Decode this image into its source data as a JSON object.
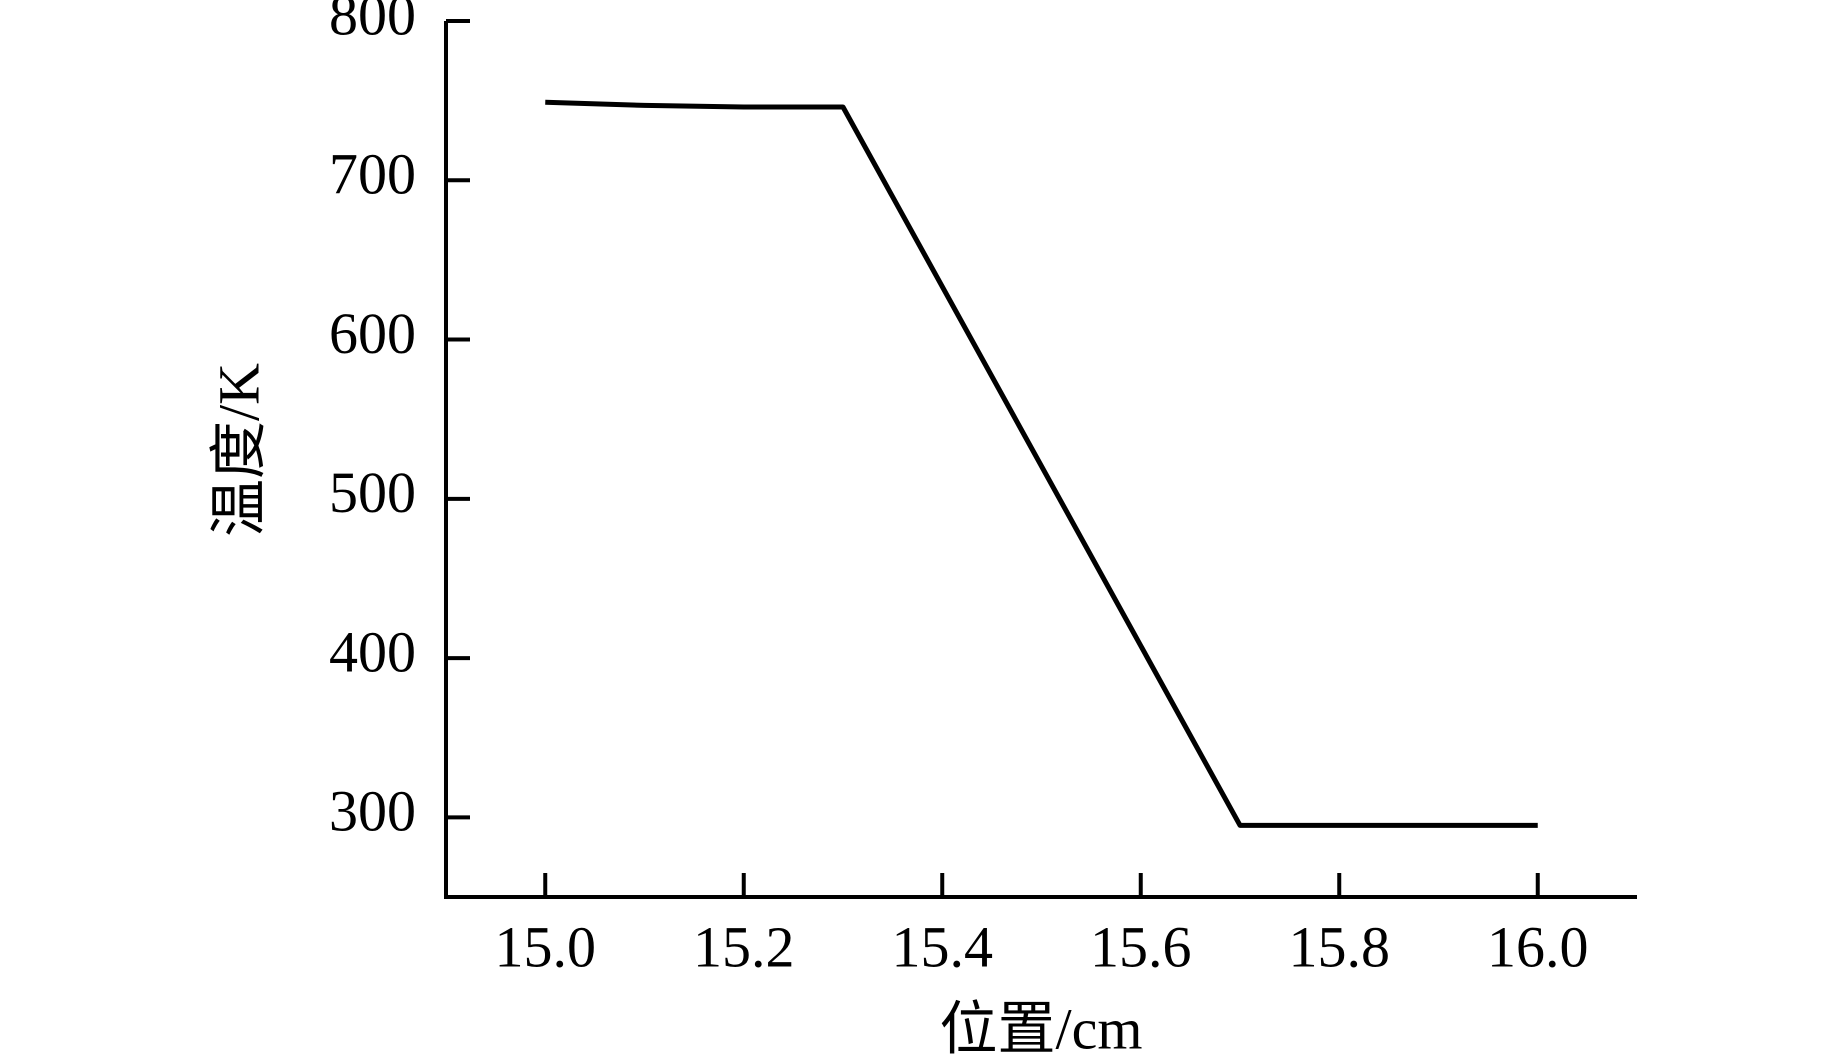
{
  "chart_data": {
    "type": "line",
    "x_label": "位置/cm",
    "y_label": "温度/K",
    "x": [
      15.0,
      15.1,
      15.2,
      15.3,
      15.7,
      16.0
    ],
    "series": [
      {
        "name": "温度",
        "color": "#000000",
        "values": [
          749,
          747,
          746,
          746,
          295,
          295
        ]
      }
    ],
    "xlim": [
      14.9,
      16.1
    ],
    "xticks": [
      {
        "value": 15.0,
        "label": "15.0"
      },
      {
        "value": 15.2,
        "label": "15.2"
      },
      {
        "value": 15.4,
        "label": "15.4"
      },
      {
        "value": 15.6,
        "label": "15.6"
      },
      {
        "value": 15.8,
        "label": "15.8"
      },
      {
        "value": 16.0,
        "label": "16.0"
      }
    ],
    "ylim": [
      250,
      800
    ],
    "yticks": [
      300,
      400,
      500,
      600,
      700,
      800
    ]
  }
}
